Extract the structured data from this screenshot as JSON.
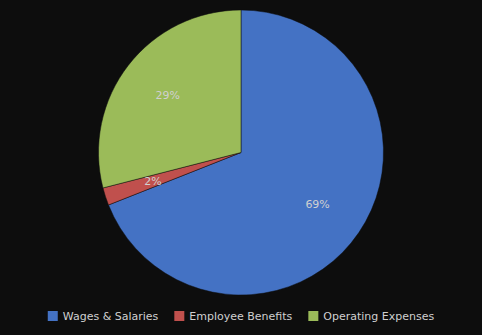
{
  "chart_data": {
    "type": "pie",
    "categories": [
      "Wages & Salaries",
      "Employee Benefits",
      "Operating Expenses"
    ],
    "values": [
      69,
      2,
      29
    ],
    "value_labels": [
      "69%",
      "2%",
      "29%"
    ],
    "colors": [
      "#4472c4",
      "#c0504d",
      "#9bbb59"
    ],
    "data_labels": true,
    "legend": "bottom"
  }
}
